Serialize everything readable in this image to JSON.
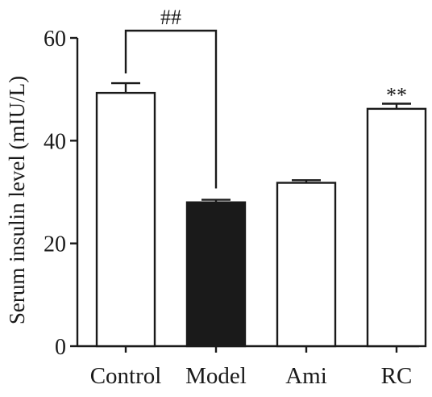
{
  "chart_data": {
    "type": "bar",
    "title": "",
    "xlabel": "",
    "ylabel": "Serum insulin level (mIU/L)",
    "ylim": [
      0,
      60
    ],
    "yticks": [
      0,
      20,
      40,
      60
    ],
    "grid": false,
    "categories": [
      "Control",
      "Model",
      "Ami",
      "RC"
    ],
    "series": [
      {
        "values": [
          49.3,
          28.0,
          31.8,
          46.2
        ],
        "errors": [
          1.9,
          0.5,
          0.5,
          1.0
        ],
        "fill_colors": [
          "#ffffff",
          "#1a1a1a",
          "#ffffff",
          "#ffffff"
        ]
      }
    ],
    "annotations": [
      {
        "text": "##",
        "type": "bracket",
        "from": "Control",
        "to": "Model"
      },
      {
        "text": "**",
        "type": "above",
        "category": "RC"
      }
    ]
  },
  "colors": {
    "axis": "#1a1a1a",
    "bar_edge": "#1a1a1a"
  }
}
